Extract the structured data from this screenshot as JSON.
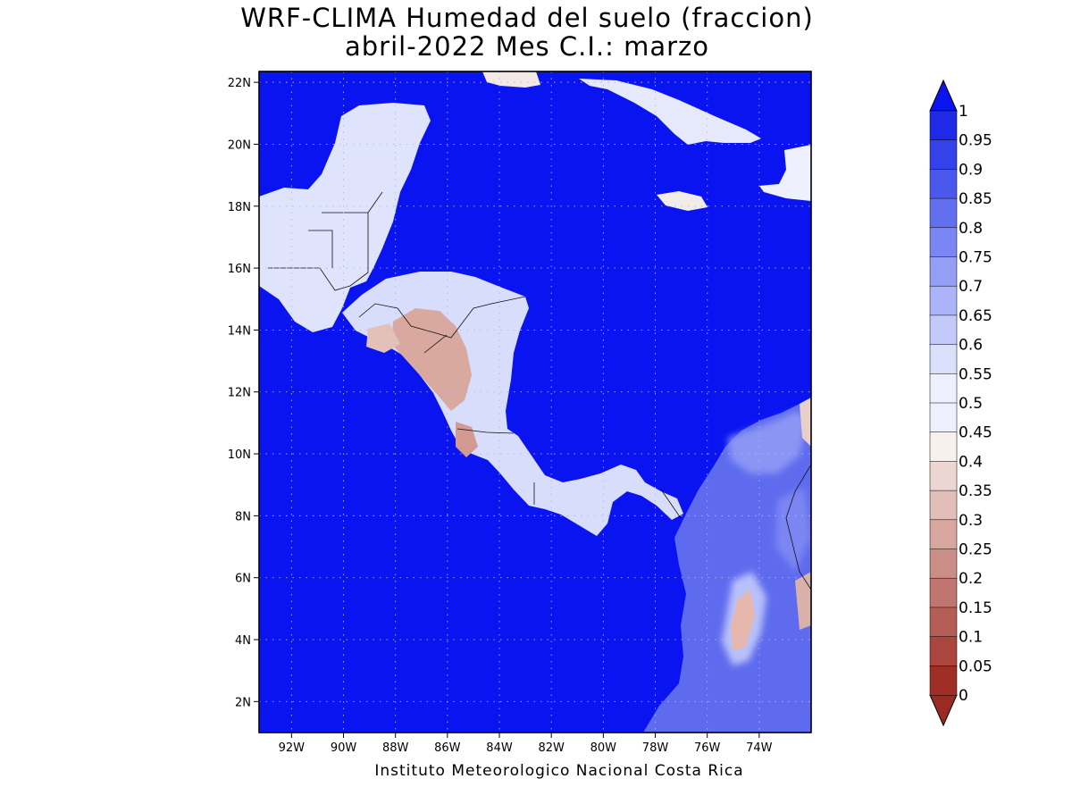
{
  "title": {
    "line1": "WRF-CLIMA Humedad del suelo (fraccion)",
    "line2": "abril-2022 Mes C.I.: marzo"
  },
  "footer": "Instituto Meteorologico Nacional Costa Rica",
  "map": {
    "variable": "Humedad del suelo",
    "units": "fraccion",
    "lat_labels": [
      "2N",
      "4N",
      "6N",
      "8N",
      "10N",
      "12N",
      "14N",
      "16N",
      "18N",
      "20N",
      "22N"
    ],
    "lon_labels": [
      "92W",
      "90W",
      "88W",
      "86W",
      "84W",
      "82W",
      "80W",
      "78W",
      "76W",
      "74W"
    ],
    "ocean_color": "#0a14f0",
    "gridlines": "dotted"
  },
  "colorbar": {
    "labels": [
      "1",
      "0.95",
      "0.9",
      "0.85",
      "0.8",
      "0.75",
      "0.7",
      "0.65",
      "0.6",
      "0.55",
      "0.5",
      "0.45",
      "0.4",
      "0.35",
      "0.3",
      "0.25",
      "0.2",
      "0.15",
      "0.1",
      "0.05",
      "0"
    ],
    "colors": [
      "#1e2ae8",
      "#3442ea",
      "#4a58ee",
      "#6270f0",
      "#7a87f3",
      "#939ef5",
      "#abb4f8",
      "#c3cafa",
      "#dadffc",
      "#eef0fe",
      "#f7f0ec",
      "#ecd6d1",
      "#e1beb8",
      "#d6a69f",
      "#cb8e86",
      "#c0766e",
      "#b55e56",
      "#aa463e",
      "#9f2e27"
    ],
    "top_arrow_color": "#0a14f0",
    "bottom_arrow_color": "#9a2a22"
  }
}
